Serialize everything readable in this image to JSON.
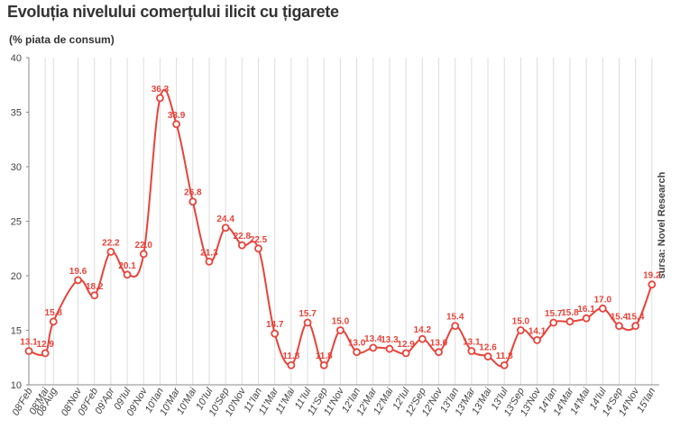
{
  "chart_data": {
    "type": "line",
    "title": "Evoluția nivelului comerțului ilicit cu țigarete",
    "ylabel": "(% piata de consum)",
    "source": "sursa: Novel Research",
    "ylim": [
      10,
      40
    ],
    "yticks": [
      10,
      15,
      20,
      25,
      30,
      35,
      40
    ],
    "grid": "vertical",
    "series_color": "#e8433a",
    "categories": [
      "08'Feb",
      "08'Mai",
      "08'Aug",
      "08'Nov",
      "09'Feb",
      "09'Apr",
      "09'Iul",
      "09'Nov",
      "10'Ian",
      "10'Mar",
      "10'Mai",
      "10'Iul",
      "10'Sep",
      "10'Nov",
      "11'Ian",
      "11'Mar",
      "11'Mai",
      "11'Iul",
      "11'Sep",
      "11'Nov",
      "12'Ian",
      "12'Mar",
      "12'Mai",
      "12'Iul",
      "12'Sep",
      "12'Nov",
      "13'Ian",
      "13'Mar",
      "13'Mai",
      "13'Iul",
      "13'Sep",
      "13'Nov",
      "14'Ian",
      "14'Mar",
      "14'Mai",
      "14'Iul",
      "14'Sep",
      "14'Nov",
      "15'Ian"
    ],
    "x": [
      0,
      1,
      1.5,
      3,
      4,
      5,
      6,
      7,
      8,
      9,
      10,
      11,
      12,
      13,
      14,
      15,
      16,
      17,
      18,
      19,
      20,
      21,
      22,
      23,
      24,
      25,
      26,
      27,
      28,
      29,
      30,
      31,
      32,
      33,
      34,
      35,
      36,
      37,
      38
    ],
    "values": [
      13.1,
      12.9,
      15.8,
      19.6,
      18.2,
      22.2,
      20.1,
      22.0,
      36.3,
      33.9,
      26.8,
      21.3,
      24.4,
      22.8,
      22.5,
      14.7,
      11.8,
      15.7,
      11.8,
      15.0,
      13.0,
      13.4,
      13.3,
      12.9,
      14.2,
      13.0,
      15.4,
      13.1,
      12.6,
      11.8,
      15.0,
      14.1,
      15.7,
      15.8,
      16.1,
      17.0,
      15.4,
      15.4,
      19.2
    ],
    "labels": [
      "13.1",
      "12.9",
      "15.8",
      "19.6",
      "18.2",
      "22.2",
      "20.1",
      "22.0",
      "36.3",
      "33.9",
      "26.8",
      "21.3",
      "24.4",
      "22.8",
      "22.5",
      "14.7",
      "11.8",
      "15.7",
      "11.8",
      "15.0",
      "13.0",
      "13.4",
      "13.3",
      "12.9",
      "14.2",
      "13.0",
      "15.4",
      "13.1",
      "12.6",
      "11.8",
      "15.0",
      "14.1",
      "15.7",
      "15.8",
      "16.1",
      "17.0",
      "15.4",
      "15.4",
      "19.2"
    ]
  }
}
